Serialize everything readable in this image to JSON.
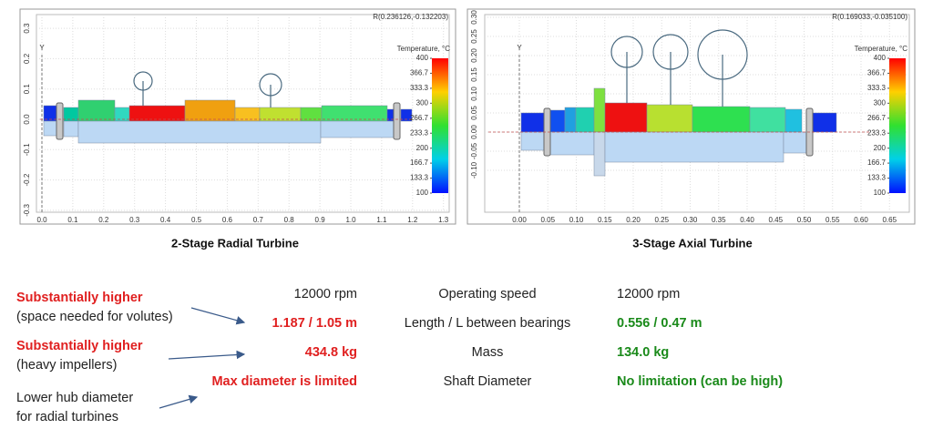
{
  "panels": [
    {
      "readout": "R(0.236126,-0.132203)",
      "axis_label": "Y",
      "caption": "2-Stage Radial Turbine",
      "colorbar_title": "Temperature, °C",
      "colorbar_ticks": [
        400,
        366.7,
        333.3,
        300,
        266.7,
        233.3,
        200,
        166.7,
        133.3,
        100
      ],
      "xticks": [
        {
          "value": 0,
          "label": "0.0"
        },
        0.1,
        0.2,
        0.3,
        0.4,
        0.5,
        0.6,
        0.7,
        0.8,
        0.9,
        {
          "value": 1,
          "label": "1.0"
        },
        1.1,
        1.2,
        1.3
      ],
      "yticks": [
        0.3,
        0.2,
        0.1,
        {
          "value": 0,
          "label": "0.0"
        },
        -0.1,
        -0.2,
        -0.3
      ]
    },
    {
      "readout": "R(0.169033,-0.035100)",
      "axis_label": "Y",
      "caption": "3-Stage Axial Turbine",
      "colorbar_title": "Temperature, °C",
      "colorbar_ticks": [
        400,
        366.7,
        333.3,
        300,
        266.7,
        233.3,
        200,
        166.7,
        133.3,
        100
      ],
      "xticks": [
        {
          "value": 0,
          "label": "0.00"
        },
        0.05,
        {
          "value": 0.1,
          "label": "0.10"
        },
        0.15,
        {
          "value": 0.2,
          "label": "0.20"
        },
        0.25,
        {
          "value": 0.3,
          "label": "0.30"
        },
        0.35,
        {
          "value": 0.4,
          "label": "0.40"
        },
        0.45,
        {
          "value": 0.5,
          "label": "0.50"
        },
        0.55,
        {
          "value": 0.6,
          "label": "0.60"
        },
        0.65
      ],
      "yticks": [
        {
          "value": 0.3,
          "label": "0.30"
        },
        0.25,
        {
          "value": 0.2,
          "label": "0.20"
        },
        0.15,
        {
          "value": 0.1,
          "label": "0.10"
        },
        0.05,
        {
          "value": 0,
          "label": "0.00"
        },
        -0.05,
        {
          "value": -0.1,
          "label": "-0.10"
        }
      ]
    }
  ],
  "comparison": {
    "rows": [
      {
        "radial": "12000 rpm",
        "metric": "Operating speed",
        "axial": "12000 rpm"
      },
      {
        "radial": "1.187 / 1.05 m",
        "metric": "Length / L between bearings",
        "axial": "0.556 / 0.47 m"
      },
      {
        "radial": "434.8 kg",
        "metric": "Mass",
        "axial": "134.0 kg"
      },
      {
        "radial": "Max diameter is limited",
        "metric": "Shaft Diameter",
        "axial": "No limitation (can be high)"
      }
    ]
  },
  "notes": [
    {
      "title": "Substantially higher",
      "text": "(space needed for volutes)"
    },
    {
      "title": "Substantially higher",
      "text": "(heavy impellers)"
    },
    {
      "lines": [
        "Lower hub diameter",
        "for radial turbines"
      ]
    }
  ]
}
